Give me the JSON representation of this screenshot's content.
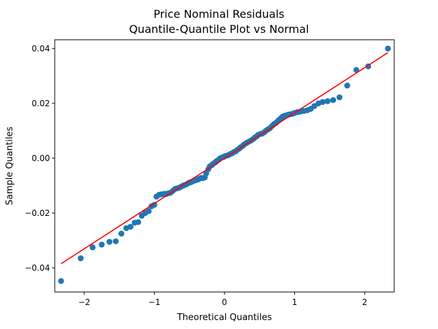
{
  "chart_data": {
    "type": "scatter",
    "title": "Price Nominal Residuals",
    "subtitle": "Quantile-Quantile Plot vs Normal",
    "xlabel": "Theoretical Quantiles",
    "ylabel": "Sample Quantiles",
    "xlim": [
      -2.42,
      2.42
    ],
    "ylim": [
      -0.0488,
      0.0432
    ],
    "xticks": [
      -2,
      -1,
      0,
      1,
      2
    ],
    "xtick_labels": [
      "−2",
      "−1",
      "0",
      "1",
      "2"
    ],
    "yticks": [
      -0.04,
      -0.02,
      0.0,
      0.02,
      0.04
    ],
    "ytick_labels": [
      "−0.04",
      "−0.02",
      "0.00",
      "0.02",
      "0.04"
    ],
    "grid": false,
    "point_color": "#1f77b4",
    "line_color": "#ff0000",
    "reference_line": {
      "x": [
        -2.33,
        2.33
      ],
      "y": [
        -0.0385,
        0.0385
      ]
    },
    "points": [
      [
        -2.33,
        -0.0448
      ],
      [
        -2.05,
        -0.0365
      ],
      [
        -1.88,
        -0.0325
      ],
      [
        -1.75,
        -0.0315
      ],
      [
        -1.64,
        -0.0305
      ],
      [
        -1.55,
        -0.0303
      ],
      [
        -1.47,
        -0.0275
      ],
      [
        -1.4,
        -0.0255
      ],
      [
        -1.34,
        -0.025
      ],
      [
        -1.28,
        -0.0235
      ],
      [
        -1.23,
        -0.0233
      ],
      [
        -1.18,
        -0.021
      ],
      [
        -1.13,
        -0.02
      ],
      [
        -1.08,
        -0.0193
      ],
      [
        -1.04,
        -0.0175
      ],
      [
        -1.0,
        -0.017
      ],
      [
        -0.97,
        -0.014
      ],
      [
        -0.93,
        -0.0133
      ],
      [
        -0.9,
        -0.0132
      ],
      [
        -0.86,
        -0.013
      ],
      [
        -0.83,
        -0.013
      ],
      [
        -0.8,
        -0.0128
      ],
      [
        -0.77,
        -0.0126
      ],
      [
        -0.74,
        -0.012
      ],
      [
        -0.71,
        -0.0113
      ],
      [
        -0.68,
        -0.011
      ],
      [
        -0.65,
        -0.0108
      ],
      [
        -0.62,
        -0.0104
      ],
      [
        -0.59,
        -0.01
      ],
      [
        -0.57,
        -0.0098
      ],
      [
        -0.54,
        -0.0095
      ],
      [
        -0.51,
        -0.009
      ],
      [
        -0.48,
        -0.0088
      ],
      [
        -0.46,
        -0.0085
      ],
      [
        -0.43,
        -0.0082
      ],
      [
        -0.41,
        -0.008
      ],
      [
        -0.38,
        -0.0078
      ],
      [
        -0.36,
        -0.0075
      ],
      [
        -0.33,
        -0.0072
      ],
      [
        -0.31,
        -0.0073
      ],
      [
        -0.28,
        -0.007
      ],
      [
        -0.26,
        -0.0055
      ],
      [
        -0.23,
        -0.004
      ],
      [
        -0.21,
        -0.003
      ],
      [
        -0.18,
        -0.0025
      ],
      [
        -0.16,
        -0.002
      ],
      [
        -0.13,
        -0.0015
      ],
      [
        -0.11,
        -0.001
      ],
      [
        -0.08,
        -0.0005
      ],
      [
        -0.06,
        0.0
      ],
      [
        -0.04,
        0.0002
      ],
      [
        -0.01,
        0.0005
      ],
      [
        0.01,
        0.0008
      ],
      [
        0.04,
        0.001
      ],
      [
        0.06,
        0.0012
      ],
      [
        0.08,
        0.0015
      ],
      [
        0.11,
        0.0018
      ],
      [
        0.13,
        0.0022
      ],
      [
        0.16,
        0.0025
      ],
      [
        0.18,
        0.003
      ],
      [
        0.21,
        0.0035
      ],
      [
        0.23,
        0.004
      ],
      [
        0.26,
        0.0045
      ],
      [
        0.28,
        0.005
      ],
      [
        0.31,
        0.0055
      ],
      [
        0.33,
        0.0058
      ],
      [
        0.36,
        0.0062
      ],
      [
        0.38,
        0.0065
      ],
      [
        0.41,
        0.007
      ],
      [
        0.43,
        0.0075
      ],
      [
        0.46,
        0.008
      ],
      [
        0.48,
        0.0085
      ],
      [
        0.51,
        0.0088
      ],
      [
        0.54,
        0.009
      ],
      [
        0.57,
        0.0095
      ],
      [
        0.59,
        0.01
      ],
      [
        0.62,
        0.0105
      ],
      [
        0.65,
        0.011
      ],
      [
        0.68,
        0.0118
      ],
      [
        0.71,
        0.0125
      ],
      [
        0.74,
        0.013
      ],
      [
        0.77,
        0.0138
      ],
      [
        0.8,
        0.0145
      ],
      [
        0.83,
        0.0152
      ],
      [
        0.86,
        0.0155
      ],
      [
        0.9,
        0.0158
      ],
      [
        0.93,
        0.016
      ],
      [
        0.97,
        0.0162
      ],
      [
        1.0,
        0.0165
      ],
      [
        1.04,
        0.0168
      ],
      [
        1.08,
        0.017
      ],
      [
        1.13,
        0.0172
      ],
      [
        1.18,
        0.0175
      ],
      [
        1.23,
        0.018
      ],
      [
        1.28,
        0.019
      ],
      [
        1.34,
        0.02
      ],
      [
        1.4,
        0.0205
      ],
      [
        1.47,
        0.0208
      ],
      [
        1.55,
        0.0212
      ],
      [
        1.64,
        0.0222
      ],
      [
        1.75,
        0.0265
      ],
      [
        1.88,
        0.0322
      ],
      [
        2.05,
        0.0335
      ],
      [
        2.33,
        0.04
      ]
    ]
  }
}
